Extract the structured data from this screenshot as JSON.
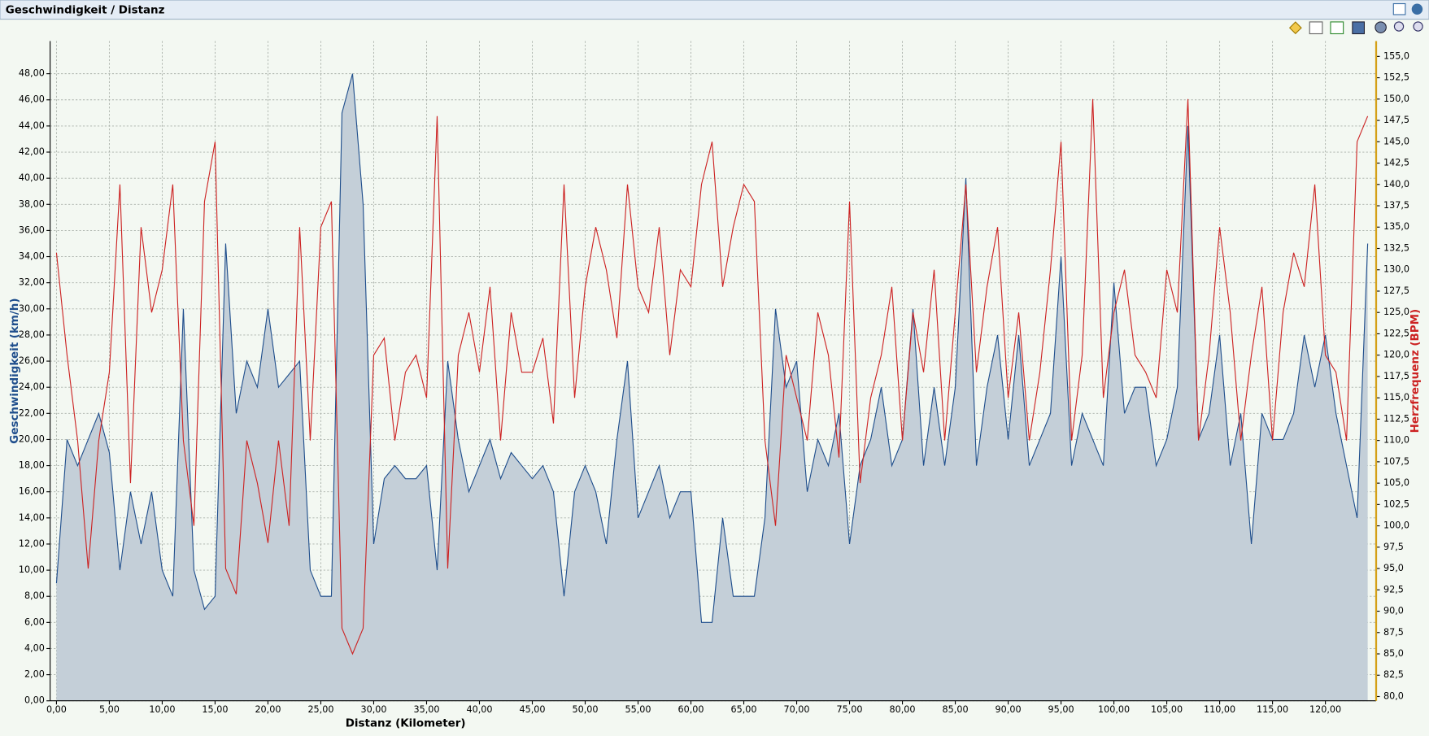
{
  "chart_data": {
    "type": "line",
    "title": "Geschwindigkeit / Distanz",
    "xlabel": "Distanz (Kilometer)",
    "ylabel": "Geschwindigkeit (km/h)",
    "y2label": "Herzfrequenz (BPM)",
    "grid": true,
    "xlim": [
      -0.6,
      124.8
    ],
    "ylim": [
      0,
      50.5
    ],
    "y2lim": [
      79.5,
      156.8
    ],
    "xticks": [
      {
        "value": 0,
        "label": "0,00"
      },
      {
        "value": 5,
        "label": "5,00"
      },
      {
        "value": 10,
        "label": "10,00"
      },
      {
        "value": 15,
        "label": "15,00"
      },
      {
        "value": 20,
        "label": "20,00"
      },
      {
        "value": 25,
        "label": "25,00"
      },
      {
        "value": 30,
        "label": "30,00"
      },
      {
        "value": 35,
        "label": "35,00"
      },
      {
        "value": 40,
        "label": "40,00"
      },
      {
        "value": 45,
        "label": "45,00"
      },
      {
        "value": 50,
        "label": "50,00"
      },
      {
        "value": 55,
        "label": "55,00"
      },
      {
        "value": 60,
        "label": "60,00"
      },
      {
        "value": 65,
        "label": "65,00"
      },
      {
        "value": 70,
        "label": "70,00"
      },
      {
        "value": 75,
        "label": "75,00"
      },
      {
        "value": 80,
        "label": "80,00"
      },
      {
        "value": 85,
        "label": "85,00"
      },
      {
        "value": 90,
        "label": "90,00"
      },
      {
        "value": 95,
        "label": "95,00"
      },
      {
        "value": 100,
        "label": "100,00"
      },
      {
        "value": 105,
        "label": "105,00"
      },
      {
        "value": 110,
        "label": "110,00"
      },
      {
        "value": 115,
        "label": "115,00"
      },
      {
        "value": 120,
        "label": "120,00"
      }
    ],
    "yticks": [
      {
        "value": 0,
        "label": "0,00"
      },
      {
        "value": 2,
        "label": "2,00"
      },
      {
        "value": 4,
        "label": "4,00"
      },
      {
        "value": 6,
        "label": "6,00"
      },
      {
        "value": 8,
        "label": "8,00"
      },
      {
        "value": 10,
        "label": "10,00"
      },
      {
        "value": 12,
        "label": "12,00"
      },
      {
        "value": 14,
        "label": "14,00"
      },
      {
        "value": 16,
        "label": "16,00"
      },
      {
        "value": 18,
        "label": "18,00"
      },
      {
        "value": 20,
        "label": "20,00"
      },
      {
        "value": 22,
        "label": "22,00"
      },
      {
        "value": 24,
        "label": "24,00"
      },
      {
        "value": 26,
        "label": "26,00"
      },
      {
        "value": 28,
        "label": "28,00"
      },
      {
        "value": 30,
        "label": "30,00"
      },
      {
        "value": 32,
        "label": "32,00"
      },
      {
        "value": 34,
        "label": "34,00"
      },
      {
        "value": 36,
        "label": "36,00"
      },
      {
        "value": 38,
        "label": "38,00"
      },
      {
        "value": 40,
        "label": "40,00"
      },
      {
        "value": 42,
        "label": "42,00"
      },
      {
        "value": 44,
        "label": "44,00"
      },
      {
        "value": 46,
        "label": "46,00"
      },
      {
        "value": 48,
        "label": "48,00"
      }
    ],
    "y2ticks": [
      {
        "value": 80,
        "label": "80,0"
      },
      {
        "value": 82.5,
        "label": "82,5"
      },
      {
        "value": 85,
        "label": "85,0"
      },
      {
        "value": 87.5,
        "label": "87,5"
      },
      {
        "value": 90,
        "label": "90,0"
      },
      {
        "value": 92.5,
        "label": "92,5"
      },
      {
        "value": 95,
        "label": "95,0"
      },
      {
        "value": 97.5,
        "label": "97,5"
      },
      {
        "value": 100,
        "label": "100,0"
      },
      {
        "value": 102.5,
        "label": "102,5"
      },
      {
        "value": 105,
        "label": "105,0"
      },
      {
        "value": 107.5,
        "label": "107,5"
      },
      {
        "value": 110,
        "label": "110,0"
      },
      {
        "value": 112.5,
        "label": "112,5"
      },
      {
        "value": 115,
        "label": "115,0"
      },
      {
        "value": 117.5,
        "label": "117,5"
      },
      {
        "value": 120,
        "label": "120,0"
      },
      {
        "value": 122.5,
        "label": "122,5"
      },
      {
        "value": 125,
        "label": "125,0"
      },
      {
        "value": 127.5,
        "label": "127,5"
      },
      {
        "value": 130,
        "label": "130,0"
      },
      {
        "value": 132.5,
        "label": "132,5"
      },
      {
        "value": 135,
        "label": "135,0"
      },
      {
        "value": 137.5,
        "label": "137,5"
      },
      {
        "value": 140,
        "label": "140,0"
      },
      {
        "value": 142.5,
        "label": "142,5"
      },
      {
        "value": 145,
        "label": "145,0"
      },
      {
        "value": 147.5,
        "label": "147,5"
      },
      {
        "value": 150,
        "label": "150,0"
      },
      {
        "value": 152.5,
        "label": "152,5"
      },
      {
        "value": 155,
        "label": "155,0"
      }
    ],
    "x": [
      0,
      1,
      2,
      3,
      4,
      5,
      6,
      7,
      8,
      9,
      10,
      11,
      12,
      13,
      14,
      15,
      16,
      17,
      18,
      19,
      20,
      21,
      22,
      23,
      24,
      25,
      26,
      27,
      28,
      29,
      30,
      31,
      32,
      33,
      34,
      35,
      36,
      37,
      38,
      39,
      40,
      41,
      42,
      43,
      44,
      45,
      46,
      47,
      48,
      49,
      50,
      51,
      52,
      53,
      54,
      55,
      56,
      57,
      58,
      59,
      60,
      61,
      62,
      63,
      64,
      65,
      66,
      67,
      68,
      69,
      70,
      71,
      72,
      73,
      74,
      75,
      76,
      77,
      78,
      79,
      80,
      81,
      82,
      83,
      84,
      85,
      86,
      87,
      88,
      89,
      90,
      91,
      92,
      93,
      94,
      95,
      96,
      97,
      98,
      99,
      100,
      101,
      102,
      103,
      104,
      105,
      106,
      107,
      108,
      109,
      110,
      111,
      112,
      113,
      114,
      115,
      116,
      117,
      118,
      119,
      120,
      121,
      122,
      123,
      124
    ],
    "series": [
      {
        "color": "#1f4e8c",
        "fill": "#c4cfd8",
        "area": true,
        "values": [
          9,
          20,
          18,
          20,
          22,
          19,
          10,
          16,
          12,
          16,
          10,
          8,
          30,
          10,
          7,
          8,
          35,
          22,
          26,
          24,
          30,
          24,
          25,
          26,
          10,
          8,
          8,
          45,
          48,
          38,
          12,
          17,
          18,
          17,
          17,
          18,
          10,
          26,
          20,
          16,
          18,
          20,
          17,
          19,
          18,
          17,
          18,
          16,
          8,
          16,
          18,
          16,
          12,
          20,
          26,
          14,
          16,
          18,
          14,
          16,
          16,
          6,
          6,
          14,
          8,
          8,
          8,
          14,
          30,
          24,
          26,
          16,
          20,
          18,
          22,
          12,
          18,
          20,
          24,
          18,
          20,
          30,
          18,
          24,
          18,
          24,
          40,
          18,
          24,
          28,
          20,
          28,
          18,
          20,
          22,
          34,
          18,
          22,
          20,
          18,
          32,
          22,
          24,
          24,
          18,
          20,
          24,
          44,
          20,
          22,
          28,
          18,
          22,
          12,
          22,
          20,
          20,
          22,
          28,
          24,
          28,
          22,
          18,
          14,
          35
        ]
      },
      {
        "color": "#cc2222",
        "axis": "y2",
        "values": [
          132,
          120,
          110,
          95,
          110,
          118,
          140,
          105,
          135,
          125,
          130,
          140,
          110,
          100,
          138,
          145,
          95,
          92,
          110,
          105,
          98,
          110,
          100,
          135,
          110,
          135,
          138,
          88,
          85,
          88,
          120,
          122,
          110,
          118,
          120,
          115,
          148,
          95,
          120,
          125,
          118,
          128,
          110,
          125,
          118,
          118,
          122,
          112,
          140,
          115,
          128,
          135,
          130,
          122,
          140,
          128,
          125,
          135,
          120,
          130,
          128,
          140,
          145,
          128,
          135,
          140,
          138,
          110,
          100,
          120,
          115,
          110,
          125,
          120,
          108,
          138,
          105,
          115,
          120,
          128,
          110,
          125,
          118,
          130,
          110,
          125,
          140,
          118,
          128,
          135,
          115,
          125,
          110,
          118,
          130,
          145,
          110,
          120,
          150,
          115,
          125,
          130,
          120,
          118,
          115,
          130,
          125,
          150,
          110,
          120,
          135,
          125,
          110,
          120,
          128,
          110,
          125,
          132,
          128,
          140,
          120,
          118,
          110,
          145,
          148
        ]
      }
    ]
  }
}
